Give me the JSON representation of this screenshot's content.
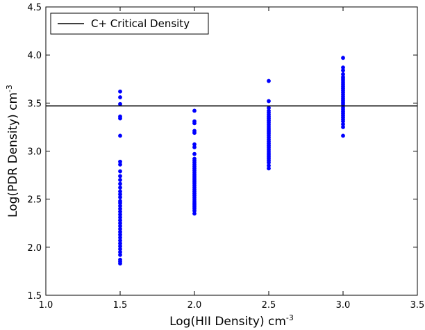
{
  "chart_data": {
    "type": "scatter",
    "title": "",
    "xlabel": "Log(HII Density) cm",
    "xlabel_sup": "-3",
    "ylabel": "Log(PDR Density) cm",
    "ylabel_sup": "-3",
    "xlim": [
      1.0,
      3.5
    ],
    "ylim": [
      1.5,
      4.5
    ],
    "xticks": [
      "1.0",
      "1.5",
      "2.0",
      "2.5",
      "3.0",
      "3.5"
    ],
    "yticks": [
      "1.5",
      "2.0",
      "2.5",
      "3.0",
      "3.5",
      "4.0",
      "4.5"
    ],
    "grid": false,
    "legend_position": "top-left",
    "reference_line": {
      "name": "C+ Critical Density",
      "y": 3.47,
      "color": "#000000"
    },
    "series": [
      {
        "color": "#0000ff",
        "points": [
          {
            "x": 1.5,
            "y": 3.62
          },
          {
            "x": 1.5,
            "y": 3.56
          },
          {
            "x": 1.5,
            "y": 3.49
          },
          {
            "x": 1.5,
            "y": 3.36
          },
          {
            "x": 1.5,
            "y": 3.34
          },
          {
            "x": 1.5,
            "y": 3.16
          },
          {
            "x": 1.5,
            "y": 2.89
          },
          {
            "x": 1.5,
            "y": 2.86
          },
          {
            "x": 1.5,
            "y": 2.79
          },
          {
            "x": 1.5,
            "y": 2.74
          },
          {
            "x": 1.5,
            "y": 2.7
          },
          {
            "x": 1.5,
            "y": 2.66
          },
          {
            "x": 1.5,
            "y": 2.62
          },
          {
            "x": 1.5,
            "y": 2.58
          },
          {
            "x": 1.5,
            "y": 2.55
          },
          {
            "x": 1.5,
            "y": 2.52
          },
          {
            "x": 1.5,
            "y": 2.48
          },
          {
            "x": 1.5,
            "y": 2.46
          },
          {
            "x": 1.5,
            "y": 2.43
          },
          {
            "x": 1.5,
            "y": 2.4
          },
          {
            "x": 1.5,
            "y": 2.37
          },
          {
            "x": 1.5,
            "y": 2.34
          },
          {
            "x": 1.5,
            "y": 2.31
          },
          {
            "x": 1.5,
            "y": 2.28
          },
          {
            "x": 1.5,
            "y": 2.25
          },
          {
            "x": 1.5,
            "y": 2.22
          },
          {
            "x": 1.5,
            "y": 2.19
          },
          {
            "x": 1.5,
            "y": 2.16
          },
          {
            "x": 1.5,
            "y": 2.13
          },
          {
            "x": 1.5,
            "y": 2.1
          },
          {
            "x": 1.5,
            "y": 2.07
          },
          {
            "x": 1.5,
            "y": 2.04
          },
          {
            "x": 1.5,
            "y": 2.01
          },
          {
            "x": 1.5,
            "y": 1.98
          },
          {
            "x": 1.5,
            "y": 1.95
          },
          {
            "x": 1.5,
            "y": 1.92
          },
          {
            "x": 1.5,
            "y": 1.87
          },
          {
            "x": 1.5,
            "y": 1.85
          },
          {
            "x": 1.5,
            "y": 1.83
          },
          {
            "x": 2.0,
            "y": 3.42
          },
          {
            "x": 2.0,
            "y": 3.31
          },
          {
            "x": 2.0,
            "y": 3.29
          },
          {
            "x": 2.0,
            "y": 3.21
          },
          {
            "x": 2.0,
            "y": 3.19
          },
          {
            "x": 2.0,
            "y": 3.07
          },
          {
            "x": 2.0,
            "y": 3.04
          },
          {
            "x": 2.0,
            "y": 2.97
          },
          {
            "x": 2.0,
            "y": 2.92
          },
          {
            "x": 2.0,
            "y": 2.9
          },
          {
            "x": 2.0,
            "y": 2.88
          },
          {
            "x": 2.0,
            "y": 2.86
          },
          {
            "x": 2.0,
            "y": 2.84
          },
          {
            "x": 2.0,
            "y": 2.82
          },
          {
            "x": 2.0,
            "y": 2.8
          },
          {
            "x": 2.0,
            "y": 2.78
          },
          {
            "x": 2.0,
            "y": 2.76
          },
          {
            "x": 2.0,
            "y": 2.74
          },
          {
            "x": 2.0,
            "y": 2.72
          },
          {
            "x": 2.0,
            "y": 2.7
          },
          {
            "x": 2.0,
            "y": 2.68
          },
          {
            "x": 2.0,
            "y": 2.66
          },
          {
            "x": 2.0,
            "y": 2.64
          },
          {
            "x": 2.0,
            "y": 2.62
          },
          {
            "x": 2.0,
            "y": 2.6
          },
          {
            "x": 2.0,
            "y": 2.58
          },
          {
            "x": 2.0,
            "y": 2.56
          },
          {
            "x": 2.0,
            "y": 2.54
          },
          {
            "x": 2.0,
            "y": 2.52
          },
          {
            "x": 2.0,
            "y": 2.5
          },
          {
            "x": 2.0,
            "y": 2.48
          },
          {
            "x": 2.0,
            "y": 2.46
          },
          {
            "x": 2.0,
            "y": 2.44
          },
          {
            "x": 2.0,
            "y": 2.42
          },
          {
            "x": 2.0,
            "y": 2.4
          },
          {
            "x": 2.0,
            "y": 2.38
          },
          {
            "x": 2.0,
            "y": 2.35
          },
          {
            "x": 2.5,
            "y": 3.73
          },
          {
            "x": 2.5,
            "y": 3.52
          },
          {
            "x": 2.5,
            "y": 3.45
          },
          {
            "x": 2.5,
            "y": 3.42
          },
          {
            "x": 2.5,
            "y": 3.4
          },
          {
            "x": 2.5,
            "y": 3.38
          },
          {
            "x": 2.5,
            "y": 3.36
          },
          {
            "x": 2.5,
            "y": 3.34
          },
          {
            "x": 2.5,
            "y": 3.32
          },
          {
            "x": 2.5,
            "y": 3.3
          },
          {
            "x": 2.5,
            "y": 3.28
          },
          {
            "x": 2.5,
            "y": 3.26
          },
          {
            "x": 2.5,
            "y": 3.24
          },
          {
            "x": 2.5,
            "y": 3.22
          },
          {
            "x": 2.5,
            "y": 3.2
          },
          {
            "x": 2.5,
            "y": 3.18
          },
          {
            "x": 2.5,
            "y": 3.16
          },
          {
            "x": 2.5,
            "y": 3.14
          },
          {
            "x": 2.5,
            "y": 3.12
          },
          {
            "x": 2.5,
            "y": 3.1
          },
          {
            "x": 2.5,
            "y": 3.08
          },
          {
            "x": 2.5,
            "y": 3.06
          },
          {
            "x": 2.5,
            "y": 3.04
          },
          {
            "x": 2.5,
            "y": 3.02
          },
          {
            "x": 2.5,
            "y": 3.0
          },
          {
            "x": 2.5,
            "y": 2.98
          },
          {
            "x": 2.5,
            "y": 2.96
          },
          {
            "x": 2.5,
            "y": 2.94
          },
          {
            "x": 2.5,
            "y": 2.92
          },
          {
            "x": 2.5,
            "y": 2.9
          },
          {
            "x": 2.5,
            "y": 2.88
          },
          {
            "x": 2.5,
            "y": 2.85
          },
          {
            "x": 2.5,
            "y": 2.82
          },
          {
            "x": 3.0,
            "y": 3.97
          },
          {
            "x": 3.0,
            "y": 3.87
          },
          {
            "x": 3.0,
            "y": 3.84
          },
          {
            "x": 3.0,
            "y": 3.8
          },
          {
            "x": 3.0,
            "y": 3.77
          },
          {
            "x": 3.0,
            "y": 3.75
          },
          {
            "x": 3.0,
            "y": 3.73
          },
          {
            "x": 3.0,
            "y": 3.71
          },
          {
            "x": 3.0,
            "y": 3.69
          },
          {
            "x": 3.0,
            "y": 3.67
          },
          {
            "x": 3.0,
            "y": 3.65
          },
          {
            "x": 3.0,
            "y": 3.63
          },
          {
            "x": 3.0,
            "y": 3.61
          },
          {
            "x": 3.0,
            "y": 3.59
          },
          {
            "x": 3.0,
            "y": 3.57
          },
          {
            "x": 3.0,
            "y": 3.55
          },
          {
            "x": 3.0,
            "y": 3.53
          },
          {
            "x": 3.0,
            "y": 3.51
          },
          {
            "x": 3.0,
            "y": 3.49
          },
          {
            "x": 3.0,
            "y": 3.47
          },
          {
            "x": 3.0,
            "y": 3.45
          },
          {
            "x": 3.0,
            "y": 3.43
          },
          {
            "x": 3.0,
            "y": 3.41
          },
          {
            "x": 3.0,
            "y": 3.39
          },
          {
            "x": 3.0,
            "y": 3.37
          },
          {
            "x": 3.0,
            "y": 3.35
          },
          {
            "x": 3.0,
            "y": 3.33
          },
          {
            "x": 3.0,
            "y": 3.31
          },
          {
            "x": 3.0,
            "y": 3.28
          },
          {
            "x": 3.0,
            "y": 3.25
          },
          {
            "x": 3.0,
            "y": 3.16
          }
        ]
      }
    ]
  }
}
